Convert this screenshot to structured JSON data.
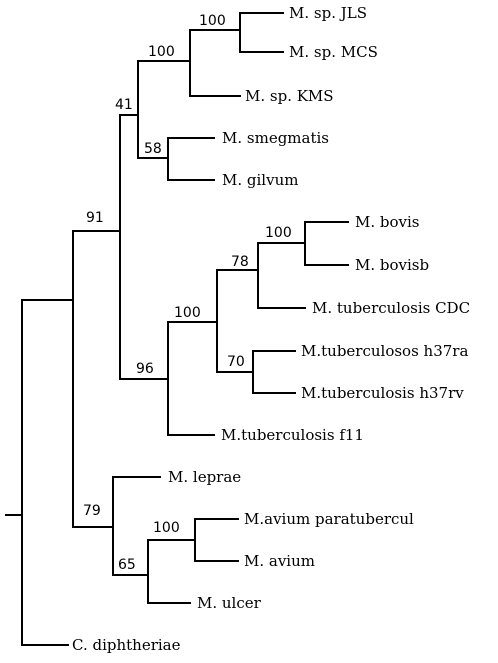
{
  "tree": {
    "taxa": {
      "jls": "M. sp. JLS",
      "mcs": "M. sp. MCS",
      "kms": "M. sp. KMS",
      "smegmatis": "M. smegmatis",
      "gilvum": "M.  gilvum",
      "bovis": "M. bovis",
      "bovisb": "M.  bovisb",
      "tb_cdc": "M. tuberculosis CDC",
      "tb_h37ra": "M.tuberculosos h37ra",
      "tb_h37rv": "M.tuberculosis h37rv",
      "tb_f11": "M.tuberculosis f11",
      "leprae": "M. leprae",
      "avium_para": "M.avium paratubercul",
      "avium": "M. avium",
      "ulcer": "M. ulcer",
      "diphtheriae": "C. diphtheriae"
    },
    "bootstrap": {
      "jls_mcs": "100",
      "jls_mcs_kms": "100",
      "fast_growers": "41",
      "smeg_gilvum": "58",
      "main_clade": "91",
      "bovis_pair": "100",
      "cdc_clade": "78",
      "tb_core": "100",
      "h37_pair": "70",
      "tb_complex": "96",
      "leprae_clade": "79",
      "avium_pair": "100",
      "avium_ulcer": "65"
    }
  }
}
